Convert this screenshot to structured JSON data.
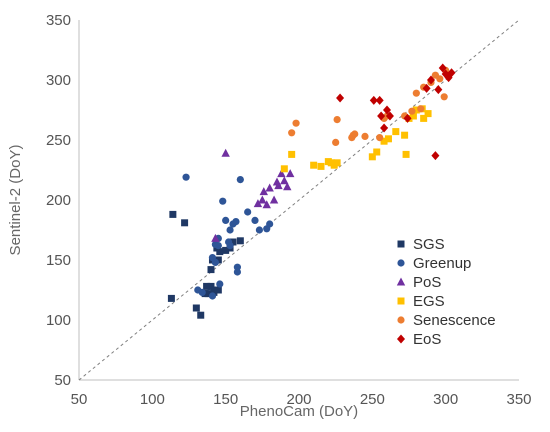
{
  "chart_data": {
    "type": "scatter",
    "xlabel": "PhenoCam (DoY)",
    "ylabel": "Sentinel-2 (DoY)",
    "xlim": [
      50,
      350
    ],
    "ylim": [
      50,
      350
    ],
    "x_ticks": [
      50,
      100,
      150,
      200,
      250,
      300,
      350
    ],
    "y_ticks": [
      50,
      100,
      150,
      200,
      250,
      300,
      350
    ],
    "grid": false,
    "reference_line": "1:1",
    "legend_position": "bottom-right",
    "series": [
      {
        "name": "SGS",
        "marker": "square",
        "color": "#1f3864",
        "points": [
          [
            113,
            118
          ],
          [
            114,
            188
          ],
          [
            122,
            181
          ],
          [
            130,
            110
          ],
          [
            133,
            104
          ],
          [
            136,
            122
          ],
          [
            137,
            128
          ],
          [
            138,
            122
          ],
          [
            140,
            128
          ],
          [
            140,
            142
          ],
          [
            141,
            150
          ],
          [
            142,
            123
          ],
          [
            143,
            125
          ],
          [
            144,
            160
          ],
          [
            145,
            150
          ],
          [
            145,
            125
          ],
          [
            146,
            157
          ],
          [
            150,
            158
          ],
          [
            153,
            160
          ],
          [
            155,
            165
          ],
          [
            160,
            166
          ]
        ]
      },
      {
        "name": "Greenup",
        "marker": "circle",
        "color": "#2e5597",
        "points": [
          [
            123,
            219
          ],
          [
            131,
            125
          ],
          [
            134,
            123
          ],
          [
            141,
            120
          ],
          [
            141,
            152
          ],
          [
            143,
            148
          ],
          [
            143,
            163
          ],
          [
            145,
            162
          ],
          [
            145,
            168
          ],
          [
            146,
            130
          ],
          [
            148,
            199
          ],
          [
            150,
            183
          ],
          [
            152,
            165
          ],
          [
            153,
            175
          ],
          [
            153,
            162
          ],
          [
            155,
            180
          ],
          [
            157,
            182
          ],
          [
            158,
            144
          ],
          [
            158,
            140
          ],
          [
            160,
            217
          ],
          [
            165,
            190
          ],
          [
            170,
            183
          ],
          [
            173,
            175
          ],
          [
            178,
            176
          ],
          [
            180,
            180
          ]
        ]
      },
      {
        "name": "PoS",
        "marker": "triangle",
        "color": "#7030a0",
        "points": [
          [
            143,
            168
          ],
          [
            150,
            239
          ],
          [
            172,
            197
          ],
          [
            175,
            200
          ],
          [
            176,
            207
          ],
          [
            178,
            196
          ],
          [
            180,
            210
          ],
          [
            183,
            200
          ],
          [
            185,
            215
          ],
          [
            186,
            212
          ],
          [
            188,
            222
          ],
          [
            190,
            216
          ],
          [
            192,
            211
          ],
          [
            194,
            222
          ]
        ]
      },
      {
        "name": "EGS",
        "marker": "square",
        "color": "#ffc000",
        "points": [
          [
            190,
            226
          ],
          [
            195,
            238
          ],
          [
            210,
            229
          ],
          [
            215,
            228
          ],
          [
            220,
            232
          ],
          [
            222,
            231
          ],
          [
            224,
            229
          ],
          [
            226,
            231
          ],
          [
            250,
            236
          ],
          [
            253,
            240
          ],
          [
            258,
            249
          ],
          [
            261,
            251
          ],
          [
            266,
            257
          ],
          [
            272,
            254
          ],
          [
            273,
            238
          ],
          [
            275,
            268
          ],
          [
            278,
            270
          ],
          [
            280,
            275
          ],
          [
            284,
            276
          ],
          [
            285,
            268
          ],
          [
            288,
            272
          ]
        ]
      },
      {
        "name": "Senescence",
        "marker": "circle",
        "color": "#ed7d31",
        "points": [
          [
            195,
            256
          ],
          [
            198,
            264
          ],
          [
            225,
            248
          ],
          [
            226,
            267
          ],
          [
            236,
            252
          ],
          [
            237,
            254
          ],
          [
            238,
            255
          ],
          [
            245,
            253
          ],
          [
            255,
            252
          ],
          [
            258,
            268
          ],
          [
            260,
            270
          ],
          [
            272,
            270
          ],
          [
            277,
            274
          ],
          [
            280,
            289
          ],
          [
            283,
            276
          ],
          [
            285,
            294
          ],
          [
            290,
            298
          ],
          [
            293,
            304
          ],
          [
            296,
            301
          ],
          [
            299,
            286
          ],
          [
            300,
            308
          ]
        ]
      },
      {
        "name": "EoS",
        "marker": "diamond",
        "color": "#c00000",
        "points": [
          [
            228,
            285
          ],
          [
            251,
            283
          ],
          [
            255,
            283
          ],
          [
            256,
            270
          ],
          [
            258,
            260
          ],
          [
            260,
            275
          ],
          [
            262,
            270
          ],
          [
            274,
            268
          ],
          [
            287,
            293
          ],
          [
            290,
            300
          ],
          [
            293,
            237
          ],
          [
            295,
            292
          ],
          [
            298,
            310
          ],
          [
            300,
            305
          ],
          [
            302,
            302
          ],
          [
            304,
            306
          ]
        ]
      }
    ]
  }
}
